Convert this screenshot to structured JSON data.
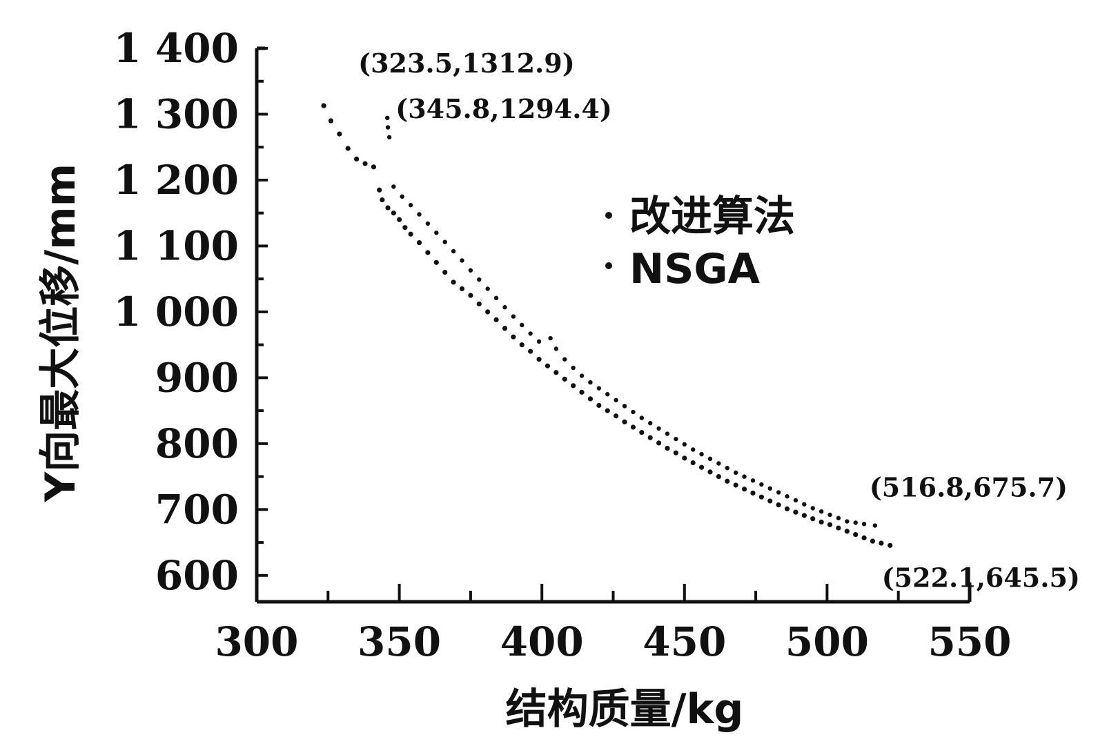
{
  "chart_data": {
    "type": "scatter",
    "xlabel": "结构质量/kg",
    "ylabel": "Y向最大位移/mm",
    "xlim": [
      300,
      550
    ],
    "ylim": [
      560,
      1400
    ],
    "x_ticks": [
      300,
      350,
      400,
      450,
      500,
      550
    ],
    "x_tick_labels": [
      "300",
      "350",
      "400",
      "450",
      "500",
      "550"
    ],
    "y_ticks": [
      600,
      700,
      800,
      900,
      1000,
      1100,
      1200,
      1300,
      1400
    ],
    "y_tick_labels": [
      "600",
      "700",
      "800",
      "900",
      "1 000",
      "1 100",
      "1 200",
      "1 300",
      "1 400"
    ],
    "legend_placement": "upper-middle",
    "series": [
      {
        "name": "改进算法",
        "points": [
          [
            323.5,
            1312.9
          ],
          [
            326,
            1290
          ],
          [
            329,
            1270
          ],
          [
            332,
            1248
          ],
          [
            335,
            1232
          ],
          [
            338,
            1225
          ],
          [
            341,
            1220
          ],
          [
            343,
            1185
          ],
          [
            344,
            1170
          ],
          [
            346,
            1158
          ],
          [
            348,
            1150
          ],
          [
            350,
            1140
          ],
          [
            352,
            1128
          ],
          [
            354,
            1118
          ],
          [
            357,
            1105
          ],
          [
            360,
            1090
          ],
          [
            363,
            1075
          ],
          [
            366,
            1060
          ],
          [
            369,
            1045
          ],
          [
            372,
            1035
          ],
          [
            375,
            1025
          ],
          [
            378,
            1012
          ],
          [
            381,
            1000
          ],
          [
            384,
            988
          ],
          [
            387,
            975
          ],
          [
            390,
            962
          ],
          [
            393,
            950
          ],
          [
            396,
            940
          ],
          [
            399,
            928
          ],
          [
            402,
            918
          ],
          [
            405,
            908
          ],
          [
            408,
            898
          ],
          [
            411,
            888
          ],
          [
            414,
            878
          ],
          [
            417,
            868
          ],
          [
            420,
            858
          ],
          [
            423,
            850
          ],
          [
            426,
            842
          ],
          [
            429,
            833
          ],
          [
            432,
            825
          ],
          [
            435,
            817
          ],
          [
            438,
            809
          ],
          [
            441,
            801
          ],
          [
            444,
            793
          ],
          [
            447,
            786
          ],
          [
            450,
            778
          ],
          [
            453,
            771
          ],
          [
            456,
            764
          ],
          [
            459,
            757
          ],
          [
            462,
            750
          ],
          [
            465,
            743
          ],
          [
            468,
            737
          ],
          [
            471,
            731
          ],
          [
            474,
            725
          ],
          [
            477,
            719
          ],
          [
            480,
            713
          ],
          [
            483,
            707
          ],
          [
            486,
            701
          ],
          [
            489,
            696
          ],
          [
            492,
            691
          ],
          [
            495,
            686
          ],
          [
            498,
            681
          ],
          [
            501,
            677
          ],
          [
            504,
            672
          ],
          [
            507,
            667
          ],
          [
            510,
            662
          ],
          [
            513,
            657
          ],
          [
            516,
            652
          ],
          [
            519,
            649
          ],
          [
            522.1,
            645.5
          ]
        ]
      },
      {
        "name": "NSGA",
        "points": [
          [
            345.8,
            1294.4
          ],
          [
            346,
            1280
          ],
          [
            346.5,
            1265
          ],
          [
            348,
            1190
          ],
          [
            351,
            1175
          ],
          [
            354,
            1162
          ],
          [
            357,
            1148
          ],
          [
            360,
            1134
          ],
          [
            363,
            1120
          ],
          [
            366,
            1106
          ],
          [
            369,
            1092
          ],
          [
            372,
            1078
          ],
          [
            375,
            1063
          ],
          [
            378,
            1049
          ],
          [
            381,
            1035
          ],
          [
            384,
            1021
          ],
          [
            387,
            1007
          ],
          [
            390,
            993
          ],
          [
            393,
            980
          ],
          [
            396,
            967
          ],
          [
            399,
            955
          ],
          [
            403,
            960
          ],
          [
            405,
            944
          ],
          [
            408,
            928
          ],
          [
            411,
            915
          ],
          [
            414,
            903
          ],
          [
            417,
            893
          ],
          [
            420,
            884
          ],
          [
            423,
            875
          ],
          [
            426,
            866
          ],
          [
            429,
            857
          ],
          [
            432,
            848
          ],
          [
            435,
            839
          ],
          [
            438,
            831
          ],
          [
            441,
            823
          ],
          [
            444,
            815
          ],
          [
            447,
            807
          ],
          [
            450,
            799
          ],
          [
            453,
            791
          ],
          [
            456,
            784
          ],
          [
            459,
            777
          ],
          [
            462,
            770
          ],
          [
            465,
            763
          ],
          [
            468,
            756
          ],
          [
            471,
            750
          ],
          [
            474,
            744
          ],
          [
            477,
            738
          ],
          [
            480,
            732
          ],
          [
            483,
            726
          ],
          [
            486,
            720
          ],
          [
            489,
            714
          ],
          [
            492,
            708
          ],
          [
            495,
            702
          ],
          [
            498,
            697
          ],
          [
            501,
            692
          ],
          [
            504,
            687
          ],
          [
            507,
            682
          ],
          [
            510,
            680
          ],
          [
            513,
            678
          ],
          [
            516.8,
            675.7
          ]
        ]
      }
    ],
    "annotations": [
      {
        "text": "(323.5,1312.9)",
        "x": 323.5,
        "y": 1312.9
      },
      {
        "text": "(345.8,1294.4)",
        "x": 345.8,
        "y": 1294.4
      },
      {
        "text": "(516.8,675.7)",
        "x": 516.8,
        "y": 675.7
      },
      {
        "text": "(522.1,645.5)",
        "x": 522.1,
        "y": 645.5
      }
    ]
  }
}
